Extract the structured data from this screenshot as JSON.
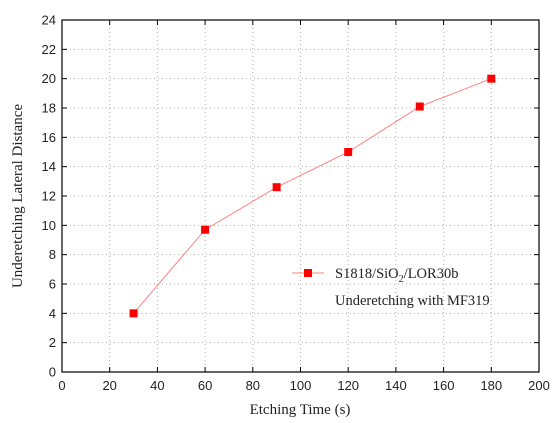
{
  "chart_data": {
    "type": "line",
    "xlabel": "Etching Time (s)",
    "ylabel": "Underetching Lateral Distance",
    "xlim": [
      0,
      200
    ],
    "ylim": [
      0,
      24
    ],
    "x_ticks": [
      0,
      20,
      40,
      60,
      80,
      100,
      120,
      140,
      160,
      180,
      200
    ],
    "y_ticks": [
      0,
      2,
      4,
      6,
      8,
      10,
      12,
      14,
      16,
      18,
      20,
      22,
      24
    ],
    "grid": true,
    "legend_position": "center-right",
    "series": [
      {
        "name": "S1818/SiO2/LOR30b",
        "legend_parts": {
          "pre": "S1818/SiO",
          "sub": "2",
          "post": "/LOR30b"
        },
        "line_color": "#ff8080",
        "marker": "square",
        "marker_color": "#ff0000",
        "x": [
          30,
          60,
          90,
          120,
          150,
          180
        ],
        "y": [
          4.0,
          9.7,
          12.6,
          15.0,
          18.1,
          20.0
        ]
      }
    ],
    "annotations": [
      "Underetching with MF319"
    ]
  }
}
